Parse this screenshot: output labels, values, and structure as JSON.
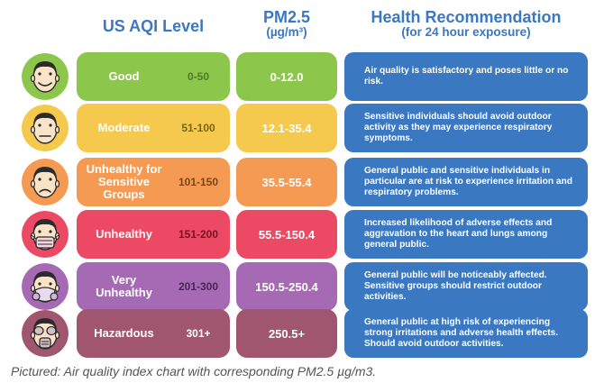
{
  "headers": {
    "aqi": "US AQI Level",
    "pm_title": "PM2.5",
    "pm_unit": "(µg/m³)",
    "health_title": "Health Recommendation",
    "health_sub": "(for 24 hour exposure)"
  },
  "levels": [
    {
      "name": "Good",
      "range": "0-50",
      "pm": "0-12.0",
      "recommendation": "Air quality is satisfactory and poses little or no risk.",
      "color": "#8cc64a",
      "pm_color": "#8cc64a",
      "face_color": "#8cc64a",
      "range_color": "#4f7a25",
      "name_color": "#ffffff",
      "mask": "none",
      "face_icon": "smiling-face-icon"
    },
    {
      "name": "Moderate",
      "range": "51-100",
      "pm": "12.1-35.4",
      "recommendation": "Sensitive individuals should avoid outdoor activity as they may experience respiratory symptoms.",
      "color": "#f5c94d",
      "pm_color": "#f5c94d",
      "face_color": "#f5c94d",
      "range_color": "#7d6316",
      "name_color": "#ffffff",
      "mask": "none",
      "face_icon": "neutral-face-icon"
    },
    {
      "name": "Unhealthy for Sensitive Groups",
      "range": "101-150",
      "pm": "35.5-55.4",
      "recommendation": "General public and sensitive individuals in particular are at risk to experience irritation and respiratory problems.",
      "color": "#f59a52",
      "pm_color": "#f59a52",
      "face_color": "#f59a52",
      "range_color": "#7a4515",
      "name_color": "#ffffff",
      "mask": "none",
      "face_icon": "frowning-face-icon"
    },
    {
      "name": "Unhealthy",
      "range": "151-200",
      "pm": "55.5-150.4",
      "recommendation": "Increased likelihood of adverse effects and aggravation to the heart and lungs among general public.",
      "color": "#ec4a64",
      "pm_color": "#ec4a64",
      "face_color": "#ec4a64",
      "range_color": "#7a1025",
      "name_color": "#ffffff",
      "mask": "surgical",
      "face_icon": "surgical-mask-face-icon"
    },
    {
      "name": "Very Unhealthy",
      "range": "201-300",
      "pm": "150.5-250.4",
      "recommendation": "General public will be noticeably affected. Sensitive groups should restrict outdoor activities.",
      "color": "#a66ab5",
      "pm_color": "#a66ab5",
      "face_color": "#a66ab5",
      "range_color": "#4c2357",
      "name_color": "#ffffff",
      "mask": "respirator",
      "face_icon": "respirator-face-icon"
    },
    {
      "name": "Hazardous",
      "range": "301+",
      "pm": "250.5+",
      "recommendation": "General public at high risk of experiencing strong irritations and adverse health effects. Should avoid outdoor activities.",
      "color": "#a0566f",
      "pm_color": "#a0566f",
      "face_color": "#a0566f",
      "range_color": "#ffffff",
      "name_color": "#ffffff",
      "mask": "gasmask",
      "face_icon": "gas-mask-face-icon"
    }
  ],
  "caption": "Pictured: Air quality index chart with corresponding PM2.5 µg/m3."
}
